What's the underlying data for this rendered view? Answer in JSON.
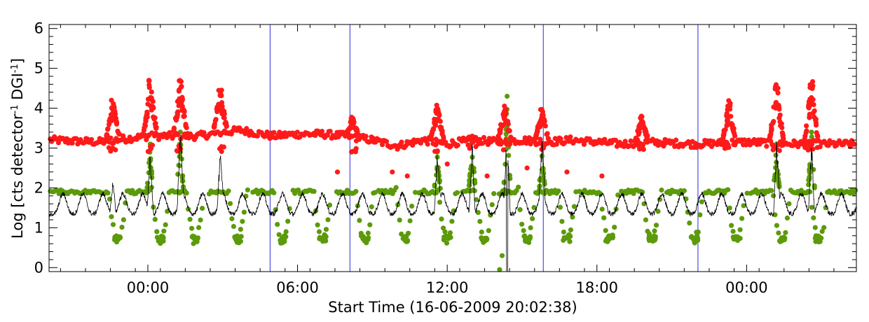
{
  "chart_data": {
    "type": "scatter",
    "title": "",
    "xlabel": "Start Time (16-06-2009 20:02:38)",
    "ylabel_parts": [
      "Log [cts detector",
      "-1",
      " DGI",
      "-1",
      "]"
    ],
    "xlim_hours": [
      20.04,
      52.4
    ],
    "ylim": [
      -0.1,
      6.1
    ],
    "x_ticks": [
      {
        "hour": 24,
        "label": "00:00"
      },
      {
        "hour": 30,
        "label": "06:00"
      },
      {
        "hour": 36,
        "label": "12:00"
      },
      {
        "hour": 42,
        "label": "18:00"
      },
      {
        "hour": 48,
        "label": "00:00"
      }
    ],
    "y_ticks": [
      {
        "value": 0,
        "label": "0"
      },
      {
        "value": 1,
        "label": "1"
      },
      {
        "value": 2,
        "label": "2"
      },
      {
        "value": 3,
        "label": "3"
      },
      {
        "value": 4,
        "label": "4"
      },
      {
        "value": 5,
        "label": "5"
      },
      {
        "value": 6,
        "label": "6"
      }
    ],
    "vertical_markers_hours": [
      28.9,
      32.1,
      39.85,
      46.05
    ],
    "series": [
      {
        "name": "red points",
        "color": "#ff1a1a",
        "marker": "dot",
        "baseline": [
          [
            20.1,
            3.2
          ],
          [
            22,
            3.15
          ],
          [
            24,
            3.3
          ],
          [
            26,
            3.3
          ],
          [
            27.7,
            3.45
          ],
          [
            29,
            3.3
          ],
          [
            30,
            3.35
          ],
          [
            31,
            3.35
          ],
          [
            32,
            3.3
          ],
          [
            33,
            3.2
          ],
          [
            34,
            3.05
          ],
          [
            35,
            3.2
          ],
          [
            36,
            3.1
          ],
          [
            37,
            3.2
          ],
          [
            38,
            3.15
          ],
          [
            39,
            3.2
          ],
          [
            40,
            3.15
          ],
          [
            41,
            3.2
          ],
          [
            42,
            3.15
          ],
          [
            43,
            3.1
          ],
          [
            44,
            3.15
          ],
          [
            46,
            3.1
          ],
          [
            48,
            3.15
          ],
          [
            50,
            3.1
          ],
          [
            52.4,
            3.1
          ]
        ],
        "spikes": [
          {
            "x": 22.6,
            "peak": 4.2
          },
          {
            "x": 24.1,
            "peak": 4.7
          },
          {
            "x": 25.3,
            "peak": 4.7
          },
          {
            "x": 26.9,
            "peak": 4.5
          },
          {
            "x": 32.2,
            "peak": 3.8
          },
          {
            "x": 35.6,
            "peak": 4.1
          },
          {
            "x": 37.0,
            "peak": 3.3
          },
          {
            "x": 38.3,
            "peak": 4.1
          },
          {
            "x": 39.8,
            "peak": 4.0
          },
          {
            "x": 43.8,
            "peak": 3.8
          },
          {
            "x": 47.3,
            "peak": 4.2
          },
          {
            "x": 49.2,
            "peak": 4.7
          },
          {
            "x": 50.6,
            "peak": 4.7
          }
        ],
        "outliers": [
          [
            31.6,
            2.4
          ],
          [
            33.8,
            2.4
          ],
          [
            34.4,
            2.3
          ],
          [
            36.0,
            2.6
          ],
          [
            37.6,
            2.3
          ],
          [
            39.2,
            2.5
          ],
          [
            40.8,
            2.4
          ],
          [
            42.2,
            2.3
          ]
        ]
      },
      {
        "name": "green points",
        "color": "#5c9a0a",
        "marker": "dot",
        "baseline_value": 1.9,
        "dips": [
          22.8,
          24.5,
          25.9,
          27.6,
          29.4,
          31.0,
          32.7,
          34.3,
          36.0,
          37.5,
          39.2,
          40.8,
          42.5,
          44.2,
          45.9,
          47.6,
          49.4,
          50.9
        ],
        "dip_depth": 0.65,
        "spikes": [
          {
            "x": 24.1,
            "peak": 3.1
          },
          {
            "x": 25.3,
            "peak": 3.4
          },
          {
            "x": 35.6,
            "peak": 2.9
          },
          {
            "x": 37.0,
            "peak": 3.3
          },
          {
            "x": 38.4,
            "peak": 4.3
          },
          {
            "x": 39.8,
            "peak": 2.8
          },
          {
            "x": 49.2,
            "peak": 3.1
          },
          {
            "x": 50.6,
            "peak": 3.4
          }
        ],
        "low_outliers": [
          [
            38.1,
            -0.05
          ],
          [
            38.2,
            0.3
          ]
        ]
      },
      {
        "name": "black line",
        "color": "#000000",
        "marker": "line",
        "base_level": 1.35,
        "peak_level": 1.85,
        "orbit_period_hours": 0.8,
        "spikes": [
          {
            "x": 22.6,
            "peak": 2.3
          },
          {
            "x": 24.1,
            "peak": 3.0
          },
          {
            "x": 25.3,
            "peak": 3.3
          },
          {
            "x": 26.9,
            "peak": 2.6
          },
          {
            "x": 35.6,
            "peak": 2.9
          },
          {
            "x": 37.0,
            "peak": 3.3
          },
          {
            "x": 38.4,
            "peak": 3.6
          },
          {
            "x": 39.8,
            "peak": 2.8
          },
          {
            "x": 49.2,
            "peak": 3.1
          },
          {
            "x": 50.6,
            "peak": 3.3
          }
        ],
        "dropout": {
          "x": 38.4,
          "min": -0.1
        }
      }
    ]
  }
}
